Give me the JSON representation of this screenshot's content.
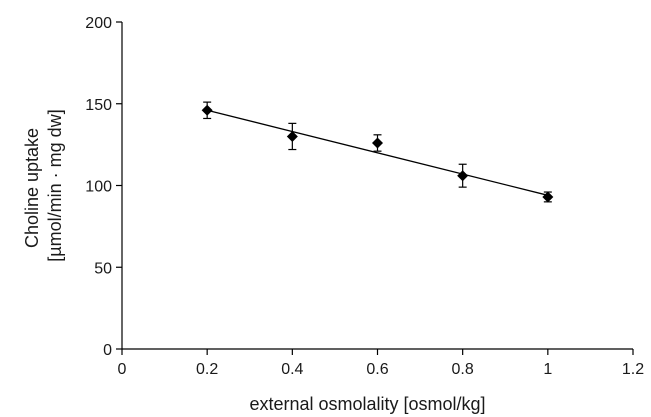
{
  "chart_data": {
    "type": "scatter",
    "title": "",
    "xlabel": "external osmolality [osmol/kg]",
    "ylabel_lines": [
      "Choline uptake",
      "[µmol/min · mg dw]"
    ],
    "xlim": [
      0,
      1.2
    ],
    "ylim": [
      0,
      200
    ],
    "x_ticks": [
      0,
      0.2,
      0.4,
      0.6,
      0.8,
      1,
      1.2
    ],
    "x_tick_labels": [
      "0",
      "0.2",
      "0.4",
      "0.6",
      "0.8",
      "1",
      "1.2"
    ],
    "y_ticks": [
      0,
      50,
      100,
      150,
      200
    ],
    "y_tick_labels": [
      "0",
      "50",
      "100",
      "150",
      "200"
    ],
    "grid": false,
    "series": [
      {
        "marker": "diamond",
        "x": [
          0.2,
          0.4,
          0.6,
          0.8,
          1.0
        ],
        "y": [
          146,
          130,
          126,
          106,
          93
        ],
        "error": [
          5,
          8,
          5,
          7,
          3
        ]
      }
    ],
    "trendline": {
      "type": "linear",
      "x": [
        0.2,
        1.0
      ],
      "y": [
        146,
        94
      ]
    }
  }
}
